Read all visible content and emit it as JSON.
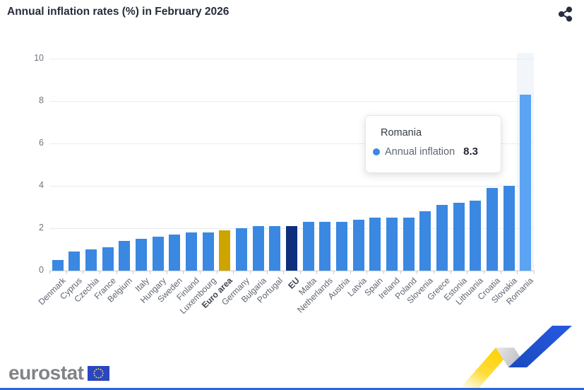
{
  "header": {
    "title": "Annual inflation rates (%) in February 2026",
    "share_icon": "share-icon"
  },
  "tooltip": {
    "country": "Romania",
    "series_label": "Annual inflation",
    "value": "8.3",
    "dot_color": "#3a88e2"
  },
  "chart_data": {
    "type": "bar",
    "title": "Annual inflation rates (%) in February 2026",
    "xlabel": "",
    "ylabel": "",
    "ylim": [
      0,
      10
    ],
    "yticks": [
      0,
      2,
      4,
      6,
      8,
      10
    ],
    "grid": true,
    "legend": false,
    "categories": [
      "Denmark",
      "Cyprus",
      "Czechia",
      "France",
      "Belgium",
      "Italy",
      "Hungary",
      "Sweden",
      "Finland",
      "Luxembourg",
      "Euro area",
      "Germany",
      "Bulgaria",
      "Portugal",
      "EU",
      "Malta",
      "Netherlands",
      "Austria",
      "Latvia",
      "Spain",
      "Ireland",
      "Poland",
      "Slovenia",
      "Greece",
      "Estonia",
      "Lithuania",
      "Croatia",
      "Slovakia",
      "Romania"
    ],
    "values": [
      0.5,
      0.9,
      1.0,
      1.1,
      1.4,
      1.5,
      1.6,
      1.7,
      1.8,
      1.8,
      1.9,
      2.0,
      2.1,
      2.1,
      2.1,
      2.3,
      2.3,
      2.3,
      2.4,
      2.5,
      2.5,
      2.5,
      2.8,
      3.1,
      3.2,
      3.3,
      3.9,
      4.0,
      8.3
    ],
    "bold_categories": [
      "Euro area",
      "EU"
    ],
    "highlight_category": "Romania",
    "colors": {
      "default_bar": "#3a88e2",
      "Euro area": "#cda400",
      "EU": "#0d2f7d",
      "Romania": "#5ba3f3",
      "highlight_band": "#f2f5f9",
      "gridline": "#e7ecf3",
      "axis_line": "#c6ccd6"
    }
  },
  "footer": {
    "logo_text": "eurostat",
    "flag_color": "#2a46c4",
    "star_color": "#ffd617",
    "bottom_line_color": "#2e66d6"
  }
}
